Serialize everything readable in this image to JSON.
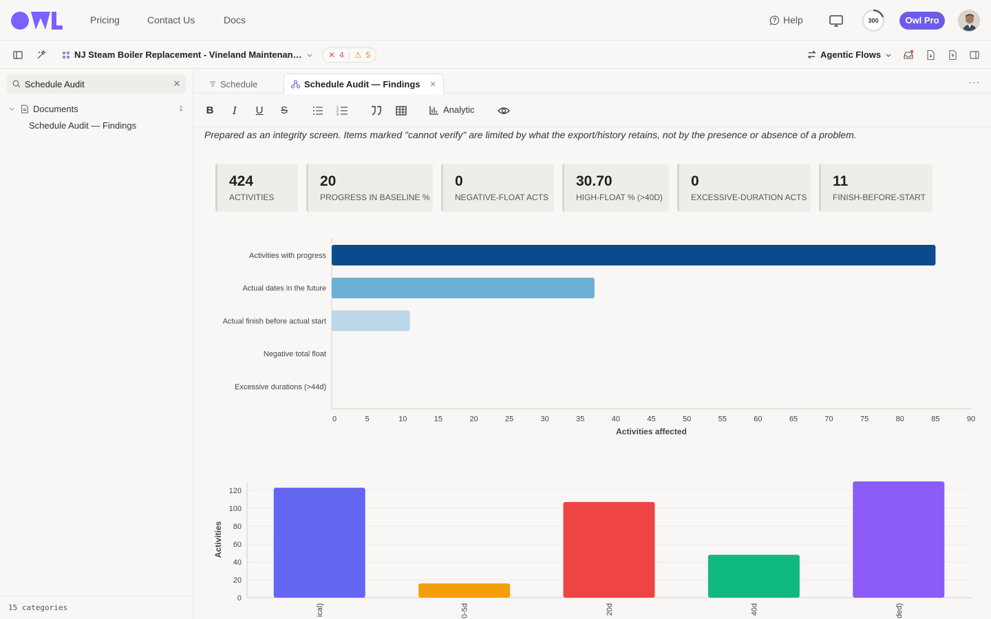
{
  "topnav": {
    "links": [
      "Pricing",
      "Contact Us",
      "Docs"
    ],
    "help_label": "Help",
    "credits": "300",
    "pro_label": "Owl Pro",
    "logo_icon": "owl-logo",
    "monitor_icon": "monitor-icon",
    "accent_color": "#6d5ce7"
  },
  "toolbar": {
    "project_title": "NJ Steam Boiler Replacement - Vineland Maintenan…",
    "error_count": "4",
    "warning_count": "5",
    "agentic_label": "Agentic Flows"
  },
  "sidebar": {
    "search_value": "Schedule Audit",
    "root_label": "Documents",
    "root_count": "1",
    "child_label": "Schedule Audit — Findings",
    "footer": "15 categories"
  },
  "tabs": [
    {
      "label": "Schedule",
      "active": false
    },
    {
      "label": "Schedule Audit — Findings",
      "active": true
    }
  ],
  "editor": {
    "analytic_label": "Analytic"
  },
  "content": {
    "note": "Prepared as an integrity screen. Items marked \"cannot verify\" are limited by what the export/history retains, not by the presence or absence of a problem.",
    "kpis": [
      {
        "value": "424",
        "label": "ACTIVITIES"
      },
      {
        "value": "20",
        "label": "PROGRESS IN BASELINE %"
      },
      {
        "value": "0",
        "label": "NEGATIVE-FLOAT ACTS"
      },
      {
        "value": "30.70",
        "label": "HIGH-FLOAT % (>40D)"
      },
      {
        "value": "0",
        "label": "EXCESSIVE-DURATION ACTS"
      },
      {
        "value": "11",
        "label": "FINISH-BEFORE-START"
      }
    ]
  },
  "chart_data": [
    {
      "type": "bar",
      "orientation": "horizontal",
      "categories": [
        "Activities with progress",
        "Actual dates in the future",
        "Actual finish before actual start",
        "Negative total float",
        "Excessive durations (>44d)"
      ],
      "values": [
        85,
        37,
        11,
        0,
        0
      ],
      "colors": [
        "#0b4a8b",
        "#6baed6",
        "#bcd6ea",
        "#6baed6",
        "#6baed6"
      ],
      "xlabel": "Activities affected",
      "xlim": [
        0,
        90
      ],
      "xticks": [
        0,
        5,
        10,
        15,
        20,
        25,
        30,
        35,
        40,
        45,
        50,
        55,
        60,
        65,
        70,
        75,
        80,
        85,
        90
      ],
      "grid": false
    },
    {
      "type": "bar",
      "categories_visible_fragments": [
        "ical)",
        "0-5d",
        "20d",
        "40d",
        "ded)"
      ],
      "values": [
        123,
        16,
        107,
        48,
        130
      ],
      "colors": [
        "#6366f1",
        "#f59e0b",
        "#ef4444",
        "#10b981",
        "#8b5cf6"
      ],
      "ylabel": "Activities",
      "ylim": [
        0,
        130
      ],
      "yticks": [
        0,
        20,
        40,
        60,
        80,
        100,
        120
      ],
      "grid": true
    }
  ]
}
